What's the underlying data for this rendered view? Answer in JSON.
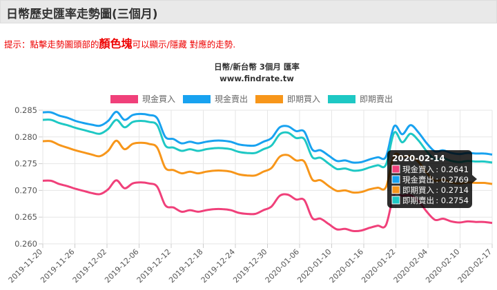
{
  "header": {
    "title": "日幣歷史匯率走勢圖(三個月)"
  },
  "hint": {
    "prefix": "提示：點擊走勢圖頭部的",
    "emphasis": "顏色塊",
    "suffix": "可以顯示/隱藏 對應的走勢."
  },
  "chart_data": {
    "type": "line",
    "title": "日幣/新台幣 3個月 匯率",
    "subtitle": "www.findrate.tw",
    "ylim": [
      0.26,
      0.285
    ],
    "y_ticks": [
      "0.285",
      "0.280",
      "0.275",
      "0.270",
      "0.265",
      "0.260"
    ],
    "y_tick_values": [
      0.285,
      0.28,
      0.275,
      0.27,
      0.265,
      0.26
    ],
    "x_ticks": [
      "2019-11-20",
      "2019-11-26",
      "2019-12-02",
      "2019-12-06",
      "2019-12-12",
      "2019-12-18",
      "2019-12-24",
      "2019-12-30",
      "2020-01-06",
      "2020-01-10",
      "2020-01-16",
      "2020-01-22",
      "2020-02-04",
      "2020-02-10",
      "2020-02-17"
    ],
    "grid": true,
    "legend_position": "top",
    "series": [
      {
        "name": "現金買入",
        "color": "#f0407a",
        "values": [
          0.2718,
          0.2718,
          0.2712,
          0.2708,
          0.2703,
          0.2699,
          0.2695,
          0.2693,
          0.2702,
          0.2719,
          0.2704,
          0.2713,
          0.2715,
          0.2713,
          0.2707,
          0.2672,
          0.2668,
          0.266,
          0.2663,
          0.266,
          0.2663,
          0.2665,
          0.2665,
          0.2663,
          0.2658,
          0.2656,
          0.2656,
          0.2663,
          0.267,
          0.269,
          0.2692,
          0.2683,
          0.2682,
          0.2648,
          0.2647,
          0.2637,
          0.2627,
          0.2628,
          0.2624,
          0.2625,
          0.263,
          0.2634,
          0.2635,
          0.2692,
          0.269,
          0.2691,
          0.268,
          0.266,
          0.2645,
          0.2647,
          0.2642,
          0.264,
          0.2642,
          0.2641,
          0.2641,
          0.2639
        ]
      },
      {
        "name": "現金賣出",
        "color": "#18a2f0",
        "values": [
          0.2846,
          0.2846,
          0.284,
          0.2836,
          0.283,
          0.2826,
          0.2823,
          0.2821,
          0.283,
          0.2847,
          0.2832,
          0.2841,
          0.2843,
          0.2841,
          0.2835,
          0.28,
          0.2796,
          0.2788,
          0.2791,
          0.2788,
          0.2791,
          0.2793,
          0.2793,
          0.2791,
          0.2786,
          0.2784,
          0.2784,
          0.2791,
          0.2798,
          0.2818,
          0.282,
          0.2811,
          0.281,
          0.2776,
          0.2775,
          0.2765,
          0.2755,
          0.2756,
          0.2752,
          0.2753,
          0.2758,
          0.2762,
          0.2763,
          0.282,
          0.2805,
          0.2822,
          0.2808,
          0.2788,
          0.2773,
          0.2775,
          0.277,
          0.2768,
          0.277,
          0.2769,
          0.2769,
          0.2767
        ]
      },
      {
        "name": "即期買入",
        "color": "#f7961a",
        "values": [
          0.2792,
          0.2792,
          0.2785,
          0.278,
          0.2775,
          0.2771,
          0.2767,
          0.2764,
          0.2774,
          0.2793,
          0.2777,
          0.2787,
          0.2789,
          0.2787,
          0.278,
          0.2742,
          0.2738,
          0.2732,
          0.2735,
          0.2732,
          0.2735,
          0.2737,
          0.2737,
          0.2735,
          0.273,
          0.2728,
          0.2728,
          0.2735,
          0.2742,
          0.2763,
          0.2766,
          0.2756,
          0.2754,
          0.272,
          0.2719,
          0.2708,
          0.2699,
          0.27,
          0.2696,
          0.2697,
          0.2702,
          0.2705,
          0.2706,
          0.2765,
          0.2763,
          0.2764,
          0.2753,
          0.2733,
          0.2718,
          0.272,
          0.2715,
          0.2713,
          0.2715,
          0.2714,
          0.2714,
          0.2712
        ]
      },
      {
        "name": "即期賣出",
        "color": "#1ec8c4",
        "values": [
          0.2832,
          0.2832,
          0.2826,
          0.2822,
          0.2817,
          0.2813,
          0.2809,
          0.2806,
          0.2815,
          0.2832,
          0.2818,
          0.2828,
          0.283,
          0.2828,
          0.2822,
          0.2784,
          0.278,
          0.2774,
          0.2777,
          0.2774,
          0.2777,
          0.2779,
          0.2779,
          0.2777,
          0.2772,
          0.277,
          0.277,
          0.2777,
          0.2784,
          0.2805,
          0.2808,
          0.2798,
          0.2796,
          0.2762,
          0.2761,
          0.275,
          0.274,
          0.2741,
          0.2737,
          0.2738,
          0.2743,
          0.2747,
          0.2748,
          0.2808,
          0.279,
          0.2806,
          0.2793,
          0.2773,
          0.2758,
          0.276,
          0.2755,
          0.2753,
          0.2755,
          0.2754,
          0.2754,
          0.2752
        ]
      }
    ],
    "tooltip": {
      "title": "2020-02-14",
      "rows": [
        {
          "label": "現金買入",
          "value": "0.2641",
          "color": "#f0407a"
        },
        {
          "label": "現金賣出",
          "value": "0.2769",
          "color": "#18a2f0"
        },
        {
          "label": "即期買入",
          "value": "0.2714",
          "color": "#f7961a"
        },
        {
          "label": "即期賣出",
          "value": "0.2754",
          "color": "#1ec8c4"
        }
      ]
    }
  }
}
